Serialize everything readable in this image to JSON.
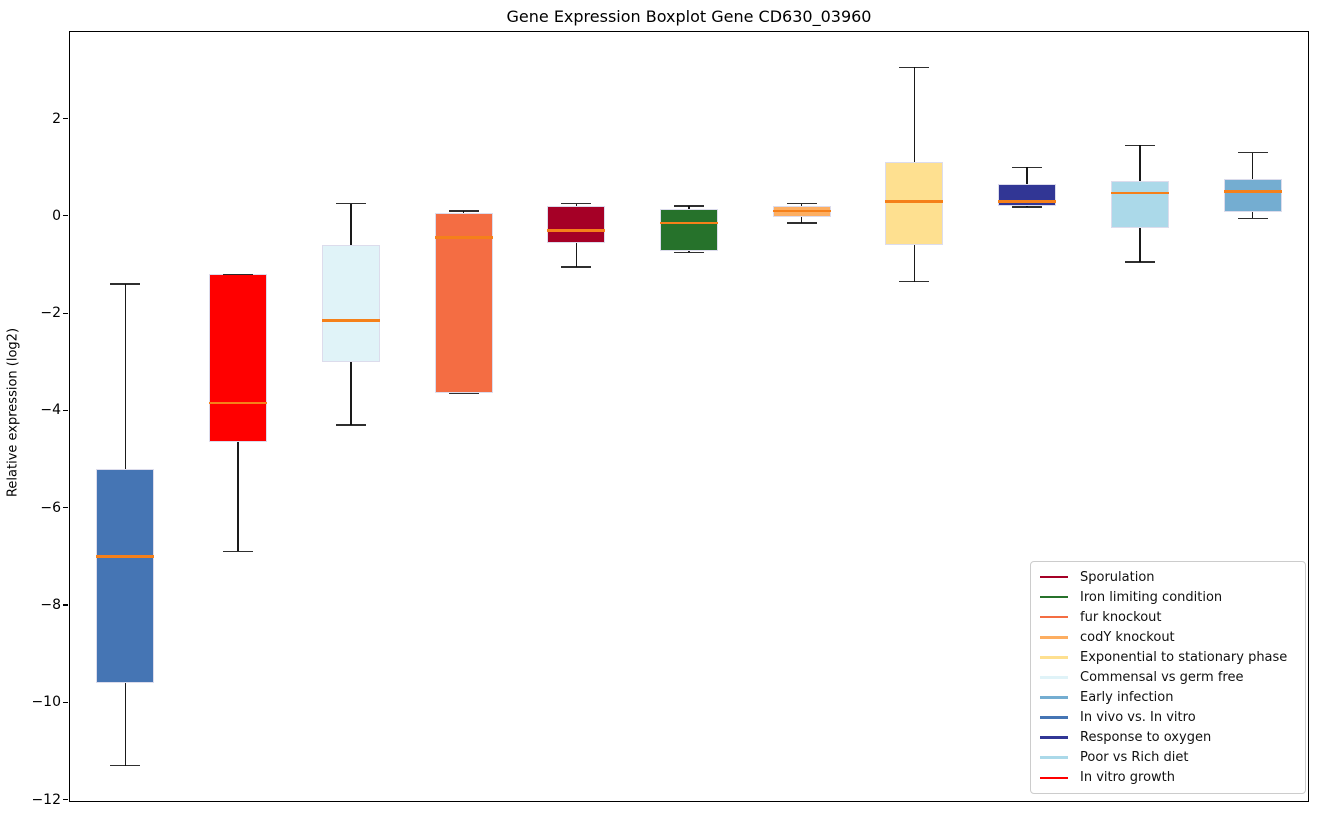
{
  "chart_data": {
    "type": "boxplot",
    "title": "Gene Expression Boxplot Gene CD630_03960",
    "xlabel": "",
    "ylabel": "Relative expression (log2)",
    "ylim": [
      -12.05,
      3.8
    ],
    "yticks": [
      2,
      0,
      -2,
      -4,
      -6,
      -8,
      -10,
      -12
    ],
    "ytick_labels": [
      "2",
      "0",
      "−2",
      "−4",
      "−6",
      "−8",
      "−10",
      "−12"
    ],
    "grid": false,
    "x_tick_labels": [],
    "legend_position": "lower-right inside axes",
    "median_color": "#f5801a",
    "whisker_color": "#1a1a1a",
    "box_edge_color": "#dcdcec",
    "series": [
      {
        "name": "In vivo vs. In vitro",
        "color": "#4575b4",
        "whisker_low": -11.3,
        "q1": -9.6,
        "median": -7.0,
        "q3": -5.2,
        "whisker_high": -1.4
      },
      {
        "name": "In vitro growth",
        "color": "#ff0000",
        "whisker_low": -6.9,
        "q1": -4.65,
        "median": -3.85,
        "q3": -1.2,
        "whisker_high": -1.2
      },
      {
        "name": "Commensal vs germ free",
        "color": "#e0f3f8",
        "whisker_low": -4.3,
        "q1": -3.0,
        "median": -2.15,
        "q3": -0.6,
        "whisker_high": 0.25
      },
      {
        "name": "fur knockout",
        "color": "#f46d43",
        "whisker_low": -3.65,
        "q1": -3.65,
        "median": -0.45,
        "q3": 0.05,
        "whisker_high": 0.1
      },
      {
        "name": "Sporulation",
        "color": "#a50026",
        "whisker_low": -1.05,
        "q1": -0.55,
        "median": -0.3,
        "q3": 0.2,
        "whisker_high": 0.25
      },
      {
        "name": "Iron limiting condition",
        "color": "#26722b",
        "whisker_low": -0.75,
        "q1": -0.72,
        "median": -0.15,
        "q3": 0.15,
        "whisker_high": 0.2
      },
      {
        "name": "codY knockout",
        "color": "#fdae61",
        "whisker_low": -0.15,
        "q1": -0.03,
        "median": 0.1,
        "q3": 0.2,
        "whisker_high": 0.25
      },
      {
        "name": "Exponential to stationary phase",
        "color": "#fee090",
        "whisker_low": -1.35,
        "q1": -0.6,
        "median": 0.3,
        "q3": 1.1,
        "whisker_high": 3.05
      },
      {
        "name": "Response to oxygen",
        "color": "#313695",
        "whisker_low": 0.18,
        "q1": 0.2,
        "median": 0.3,
        "q3": 0.65,
        "whisker_high": 1.0
      },
      {
        "name": "Poor vs Rich diet",
        "color": "#abd9e9",
        "whisker_low": -0.95,
        "q1": -0.25,
        "median": 0.47,
        "q3": 0.72,
        "whisker_high": 1.45
      },
      {
        "name": "Early infection",
        "color": "#74add1",
        "whisker_low": -0.05,
        "q1": 0.07,
        "median": 0.5,
        "q3": 0.75,
        "whisker_high": 1.3
      }
    ],
    "legend": [
      {
        "label": "Sporulation",
        "color": "#a50026"
      },
      {
        "label": "Iron limiting condition",
        "color": "#26722b"
      },
      {
        "label": "fur knockout",
        "color": "#f46d43"
      },
      {
        "label": "codY knockout",
        "color": "#fdae61"
      },
      {
        "label": "Exponential to stationary phase",
        "color": "#fee090"
      },
      {
        "label": "Commensal vs germ free",
        "color": "#e0f3f8"
      },
      {
        "label": "Early infection",
        "color": "#74add1"
      },
      {
        "label": "In vivo vs. In vitro",
        "color": "#4575b4"
      },
      {
        "label": "Response to oxygen",
        "color": "#313695"
      },
      {
        "label": "Poor vs Rich diet",
        "color": "#abd9e9"
      },
      {
        "label": "In vitro growth",
        "color": "#ff0000"
      }
    ]
  }
}
